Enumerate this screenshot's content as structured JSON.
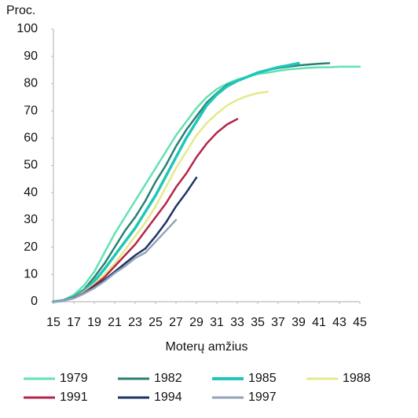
{
  "chart_data": {
    "type": "line",
    "y_label": "Proc.",
    "x_label": "Moterų amžius",
    "x": [
      15,
      16,
      17,
      18,
      19,
      20,
      21,
      22,
      23,
      24,
      25,
      26,
      27,
      28,
      29,
      30,
      31,
      32,
      33,
      34,
      35,
      36,
      37,
      38,
      39,
      40,
      41,
      42,
      43,
      44,
      45
    ],
    "xlim": [
      15,
      45
    ],
    "xticks": [
      15,
      17,
      19,
      21,
      23,
      25,
      27,
      29,
      31,
      33,
      35,
      37,
      39,
      41,
      43,
      45
    ],
    "ylim": [
      0,
      100
    ],
    "yticks": [
      0,
      10,
      20,
      30,
      40,
      50,
      60,
      70,
      80,
      90,
      100
    ],
    "grid": false,
    "series": [
      {
        "name": "1979",
        "color": "#62e2b3",
        "values": [
          0,
          0.7,
          2.5,
          6,
          11,
          18,
          25,
          31,
          37,
          43,
          49,
          55,
          61,
          66,
          71,
          75,
          78,
          80,
          81.5,
          82.5,
          83.5,
          84,
          84.7,
          85.2,
          85.5,
          85.8,
          86,
          86,
          86.2,
          86.2,
          86.2
        ]
      },
      {
        "name": "1982",
        "color": "#2b7f72",
        "values": [
          0,
          0.5,
          2,
          4.5,
          9,
          14,
          20,
          26,
          31,
          37,
          44,
          50,
          57,
          63,
          68,
          73,
          76.5,
          79.5,
          81,
          82.5,
          84,
          85,
          85.7,
          86.2,
          86.7,
          87,
          87.3,
          87.5,
          null,
          null,
          null
        ]
      },
      {
        "name": "1985",
        "color": "#20c6b8",
        "values": [
          0,
          0.5,
          1.8,
          4,
          7.5,
          12,
          17,
          22,
          27,
          33,
          39,
          46,
          53,
          60,
          66,
          72,
          76,
          79,
          81,
          82.5,
          84,
          85,
          86,
          86.7,
          87.5,
          null,
          null,
          null,
          null,
          null,
          null
        ]
      },
      {
        "name": "1988",
        "color": "#e6e98a",
        "values": [
          0,
          0.4,
          1.5,
          3.5,
          6.5,
          10,
          14,
          19,
          24,
          29,
          35,
          42,
          49,
          55,
          61,
          65.5,
          69,
          72,
          74,
          75.5,
          76.5,
          77,
          null,
          null,
          null,
          null,
          null,
          null,
          null,
          null,
          null
        ]
      },
      {
        "name": "1991",
        "color": "#b3264a",
        "values": [
          0,
          0.4,
          1.5,
          3.2,
          6,
          9,
          13,
          17,
          21,
          26,
          31,
          36,
          42,
          47,
          53,
          58,
          62,
          65,
          67,
          null,
          null,
          null,
          null,
          null,
          null,
          null,
          null,
          null,
          null,
          null,
          null
        ]
      },
      {
        "name": "1994",
        "color": "#1e3466",
        "values": [
          0,
          0.4,
          1.3,
          3,
          5.5,
          8,
          11,
          14,
          17,
          19.5,
          24,
          29,
          35,
          40,
          45.5,
          null,
          null,
          null,
          null,
          null,
          null,
          null,
          null,
          null,
          null,
          null,
          null,
          null,
          null,
          null,
          null
        ]
      },
      {
        "name": "1997",
        "color": "#93a3b8",
        "values": [
          0,
          0.4,
          1.3,
          3,
          5,
          7.5,
          10.5,
          13,
          16,
          18,
          22,
          26,
          30,
          null,
          null,
          null,
          null,
          null,
          null,
          null,
          null,
          null,
          null,
          null,
          null,
          null,
          null,
          null,
          null,
          null,
          null
        ]
      }
    ]
  }
}
